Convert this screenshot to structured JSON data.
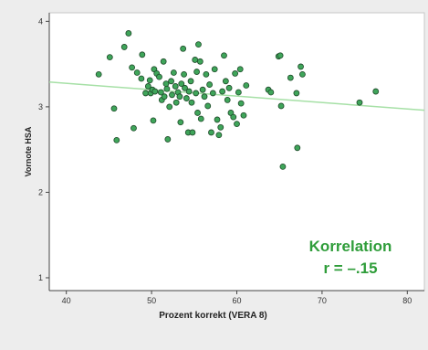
{
  "chart_data": {
    "type": "scatter",
    "xlabel": "Prozent korrekt (VERA 8)",
    "ylabel": "Vornote HSA",
    "xlim": [
      38,
      82
    ],
    "ylim": [
      0.85,
      4.1
    ],
    "x_ticks": [
      40,
      50,
      60,
      70,
      80
    ],
    "y_ticks": [
      1,
      2,
      3,
      4
    ],
    "grid": false,
    "annotation": [
      "Korrelation",
      "r = –.15"
    ],
    "fit_line": {
      "x": [
        38,
        82
      ],
      "y": [
        3.29,
        2.96
      ]
    },
    "points": [
      [
        43.8,
        3.38
      ],
      [
        45.1,
        3.58
      ],
      [
        45.6,
        2.98
      ],
      [
        45.9,
        2.61
      ],
      [
        46.8,
        3.7
      ],
      [
        47.3,
        3.86
      ],
      [
        47.7,
        3.46
      ],
      [
        47.9,
        2.75
      ],
      [
        48.3,
        3.4
      ],
      [
        48.8,
        3.33
      ],
      [
        48.9,
        3.61
      ],
      [
        49.3,
        3.16
      ],
      [
        49.6,
        3.24
      ],
      [
        49.8,
        3.31
      ],
      [
        49.9,
        3.16
      ],
      [
        50.1,
        3.2
      ],
      [
        50.2,
        2.84
      ],
      [
        50.3,
        3.44
      ],
      [
        50.4,
        3.18
      ],
      [
        50.6,
        3.39
      ],
      [
        50.9,
        3.35
      ],
      [
        51.1,
        3.17
      ],
      [
        51.2,
        3.08
      ],
      [
        51.4,
        3.53
      ],
      [
        51.5,
        3.12
      ],
      [
        51.7,
        3.27
      ],
      [
        51.8,
        3.21
      ],
      [
        51.9,
        2.62
      ],
      [
        52.1,
        3.0
      ],
      [
        52.3,
        3.3
      ],
      [
        52.4,
        3.14
      ],
      [
        52.6,
        3.4
      ],
      [
        52.8,
        3.24
      ],
      [
        52.9,
        3.05
      ],
      [
        53.1,
        3.17
      ],
      [
        53.3,
        3.12
      ],
      [
        53.4,
        2.82
      ],
      [
        53.5,
        3.27
      ],
      [
        53.7,
        3.68
      ],
      [
        53.8,
        3.38
      ],
      [
        53.9,
        3.22
      ],
      [
        54.1,
        3.1
      ],
      [
        54.3,
        2.7
      ],
      [
        54.4,
        3.18
      ],
      [
        54.6,
        3.3
      ],
      [
        54.7,
        3.05
      ],
      [
        54.8,
        2.7
      ],
      [
        55.1,
        3.55
      ],
      [
        55.2,
        3.16
      ],
      [
        55.3,
        3.41
      ],
      [
        55.4,
        2.93
      ],
      [
        55.5,
        3.73
      ],
      [
        55.7,
        3.53
      ],
      [
        55.8,
        2.86
      ],
      [
        56.0,
        3.2
      ],
      [
        56.2,
        3.12
      ],
      [
        56.4,
        3.38
      ],
      [
        56.6,
        3.01
      ],
      [
        56.8,
        3.26
      ],
      [
        57.0,
        2.7
      ],
      [
        57.2,
        3.16
      ],
      [
        57.4,
        3.44
      ],
      [
        57.7,
        2.85
      ],
      [
        57.9,
        2.67
      ],
      [
        58.1,
        2.76
      ],
      [
        58.3,
        3.18
      ],
      [
        58.5,
        3.6
      ],
      [
        58.7,
        3.3
      ],
      [
        58.9,
        3.08
      ],
      [
        59.1,
        3.22
      ],
      [
        59.3,
        2.93
      ],
      [
        59.6,
        2.88
      ],
      [
        59.8,
        3.39
      ],
      [
        60.0,
        2.8
      ],
      [
        60.2,
        3.17
      ],
      [
        60.4,
        3.44
      ],
      [
        60.5,
        3.04
      ],
      [
        60.8,
        2.9
      ],
      [
        61.1,
        3.25
      ],
      [
        63.7,
        3.2
      ],
      [
        64.0,
        3.17
      ],
      [
        64.9,
        3.59
      ],
      [
        65.1,
        3.6
      ],
      [
        65.2,
        3.01
      ],
      [
        65.4,
        2.3
      ],
      [
        66.3,
        3.34
      ],
      [
        67.0,
        3.16
      ],
      [
        67.1,
        2.52
      ],
      [
        67.5,
        3.47
      ],
      [
        67.7,
        3.38
      ],
      [
        74.4,
        3.05
      ],
      [
        76.3,
        3.18
      ]
    ]
  }
}
